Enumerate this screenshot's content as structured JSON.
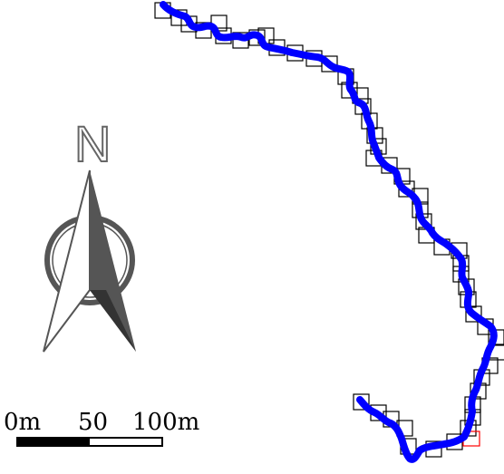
{
  "map": {
    "north_label": "N",
    "scale_bar": {
      "labels": [
        "0m",
        "50",
        "100m"
      ],
      "unit": "m"
    },
    "colors": {
      "track": "#0000ff",
      "grid_cell": "#000000",
      "highlight_cell": "#ff0000",
      "compass_dark": "#555555",
      "compass_light": "#ffffff"
    },
    "icons": [
      "north-arrow-icon"
    ]
  }
}
